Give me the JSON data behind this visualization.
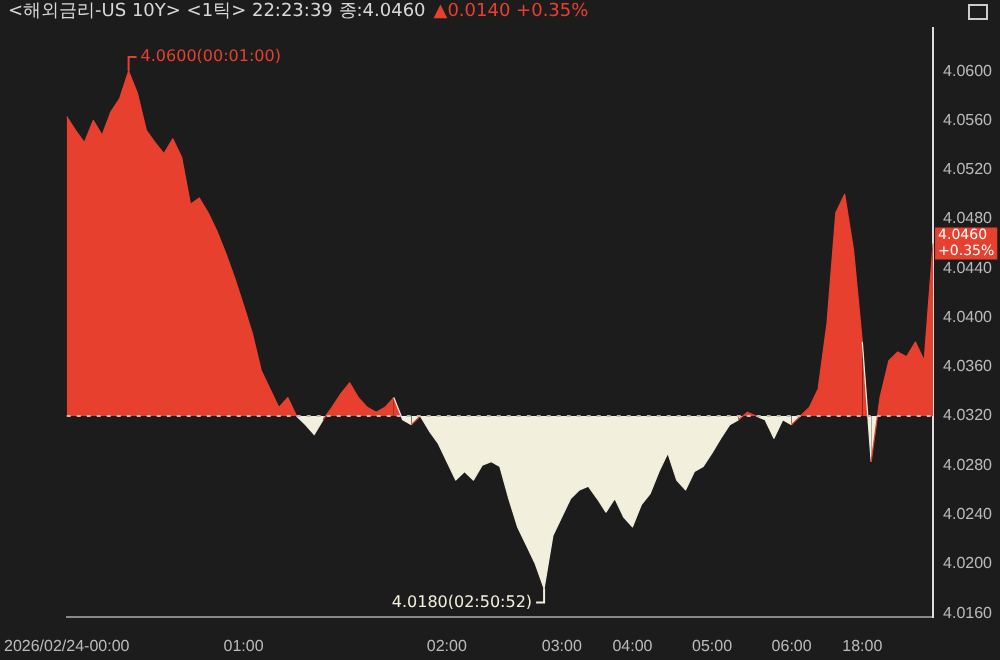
{
  "chart_data": {
    "type": "area",
    "title": "<해외금리-US 10Y> <1틱> 22:23:39 종:4.0460",
    "subtitle": "▲0.0140 +0.35%",
    "categories": [
      "2026/02/24-00:00",
      null,
      null,
      null,
      null,
      null,
      null,
      null,
      null,
      null,
      null,
      null,
      null,
      null,
      null,
      null,
      null,
      null,
      null,
      null,
      "01:00",
      null,
      null,
      null,
      null,
      null,
      null,
      null,
      null,
      null,
      null,
      null,
      null,
      null,
      null,
      null,
      null,
      null,
      null,
      null,
      null,
      null,
      null,
      "02:00",
      null,
      null,
      null,
      null,
      null,
      null,
      null,
      null,
      null,
      null,
      null,
      null,
      "03:00",
      null,
      null,
      null,
      null,
      null,
      null,
      null,
      "04:00",
      null,
      null,
      null,
      null,
      null,
      null,
      null,
      null,
      "05:00",
      null,
      null,
      null,
      null,
      null,
      null,
      null,
      null,
      "06:00",
      null,
      null,
      null,
      null,
      null,
      null,
      null,
      "18:00",
      null,
      null,
      null,
      null,
      null,
      null,
      null,
      null
    ],
    "series": [
      {
        "values": [
          4.0563,
          4.0552,
          4.0542,
          4.056,
          4.0548,
          4.0567,
          4.0578,
          4.06,
          4.0582,
          4.0552,
          4.0542,
          4.0533,
          4.0545,
          4.053,
          4.0492,
          4.0497,
          4.0485,
          4.047,
          4.0452,
          4.0432,
          4.041,
          4.0387,
          4.0357,
          4.0342,
          4.0327,
          4.0335,
          4.032,
          4.0313,
          4.0305,
          4.0317,
          4.0327,
          4.0338,
          4.0347,
          4.0335,
          4.0327,
          4.0323,
          4.0327,
          4.0335,
          4.0317,
          4.0313,
          4.032,
          4.0308,
          4.0298,
          4.0283,
          4.0268,
          4.0275,
          4.0268,
          4.028,
          4.0283,
          4.0279,
          4.0253,
          4.023,
          4.0215,
          4.02,
          4.018,
          4.0223,
          4.0238,
          4.0253,
          4.026,
          4.0263,
          4.0253,
          4.0242,
          4.0253,
          4.0238,
          4.023,
          4.0248,
          4.0257,
          4.0275,
          4.029,
          4.0268,
          4.026,
          4.0275,
          4.0279,
          4.029,
          4.0302,
          4.0313,
          4.0317,
          4.0323,
          4.032,
          4.0317,
          4.0302,
          4.0317,
          4.0313,
          4.032,
          4.0327,
          4.0342,
          4.0395,
          4.0485,
          4.05,
          4.0455,
          4.038,
          4.0283,
          4.0335,
          4.0365,
          4.0372,
          4.0368,
          4.038,
          4.0365,
          4.046
        ],
        "colors": [
          "#e8402f",
          "#e8402f",
          "#e8402f",
          "#e8402f",
          "#e8402f",
          "#e8402f",
          "#e8402f",
          "#e8402f",
          "#e8402f",
          "#e8402f",
          "#e8402f",
          "#e8402f",
          "#e8402f",
          "#e8402f",
          "#e8402f",
          "#e8402f",
          "#e8402f",
          "#e8402f",
          "#e8402f",
          "#e8402f",
          "#e8402f",
          "#e8402f",
          "#e8402f",
          "#e8402f",
          "#e8402f",
          "#e8402f",
          "#e8402f",
          "#f2efdc",
          "#f2efdc",
          "#f2efdc",
          "#e8402f",
          "#e8402f",
          "#e8402f",
          "#e8402f",
          "#e8402f",
          "#e8402f",
          "#e8402f",
          "#e8402f",
          "#f2efdc",
          "#f2efdc",
          "#e8402f",
          "#f2efdc",
          "#f2efdc",
          "#f2efdc",
          "#f2efdc",
          "#f2efdc",
          "#f2efdc",
          "#f2efdc",
          "#f2efdc",
          "#f2efdc",
          "#f2efdc",
          "#f2efdc",
          "#f2efdc",
          "#f2efdc",
          "#f2efdc",
          "#f2efdc",
          "#f2efdc",
          "#f2efdc",
          "#f2efdc",
          "#f2efdc",
          "#f2efdc",
          "#f2efdc",
          "#f2efdc",
          "#f2efdc",
          "#f2efdc",
          "#f2efdc",
          "#f2efdc",
          "#f2efdc",
          "#f2efdc",
          "#f2efdc",
          "#f2efdc",
          "#f2efdc",
          "#f2efdc",
          "#f2efdc",
          "#f2efdc",
          "#f2efdc",
          "#f2efdc",
          "#e8402f",
          "#e8402f",
          "#f2efdc",
          "#f2efdc",
          "#f2efdc",
          "#f2efdc",
          "#e8402f",
          "#e8402f",
          "#e8402f",
          "#e8402f",
          "#e8402f",
          "#e8402f",
          "#e8402f",
          "#e8402f",
          "#f2efdc",
          "#e8402f",
          "#e8402f",
          "#e8402f",
          "#e8402f",
          "#e8402f",
          "#e8402f",
          "#e8402f"
        ]
      }
    ],
    "ylim": [
      4.0157,
      4.0635
    ],
    "yticks": [
      {
        "value": 4.016,
        "label": "4.0160"
      },
      {
        "value": 4.02,
        "label": "4.0200"
      },
      {
        "value": 4.024,
        "label": "4.0240"
      },
      {
        "value": 4.028,
        "label": "4.0280"
      },
      {
        "value": 4.032,
        "label": "4.0320"
      },
      {
        "value": 4.036,
        "label": "4.0360"
      },
      {
        "value": 4.04,
        "label": "4.0400"
      },
      {
        "value": 4.044,
        "label": "4.0440"
      },
      {
        "value": 4.048,
        "label": "4.0480"
      },
      {
        "value": 4.052,
        "label": "4.0520"
      },
      {
        "value": 4.056,
        "label": "4.0560"
      },
      {
        "value": 4.06,
        "label": "4.0600"
      }
    ],
    "ref_lines": [
      {
        "axis": "y",
        "value": 4.032,
        "color": "#bbbbbb",
        "line_style": "dotted"
      }
    ],
    "annotations": [
      "4.0600(00:01:00)",
      "4.0180(02:50:52)",
      "4.0460",
      "+0.35%"
    ],
    "grid": false,
    "legend": false,
    "marker": "none"
  }
}
